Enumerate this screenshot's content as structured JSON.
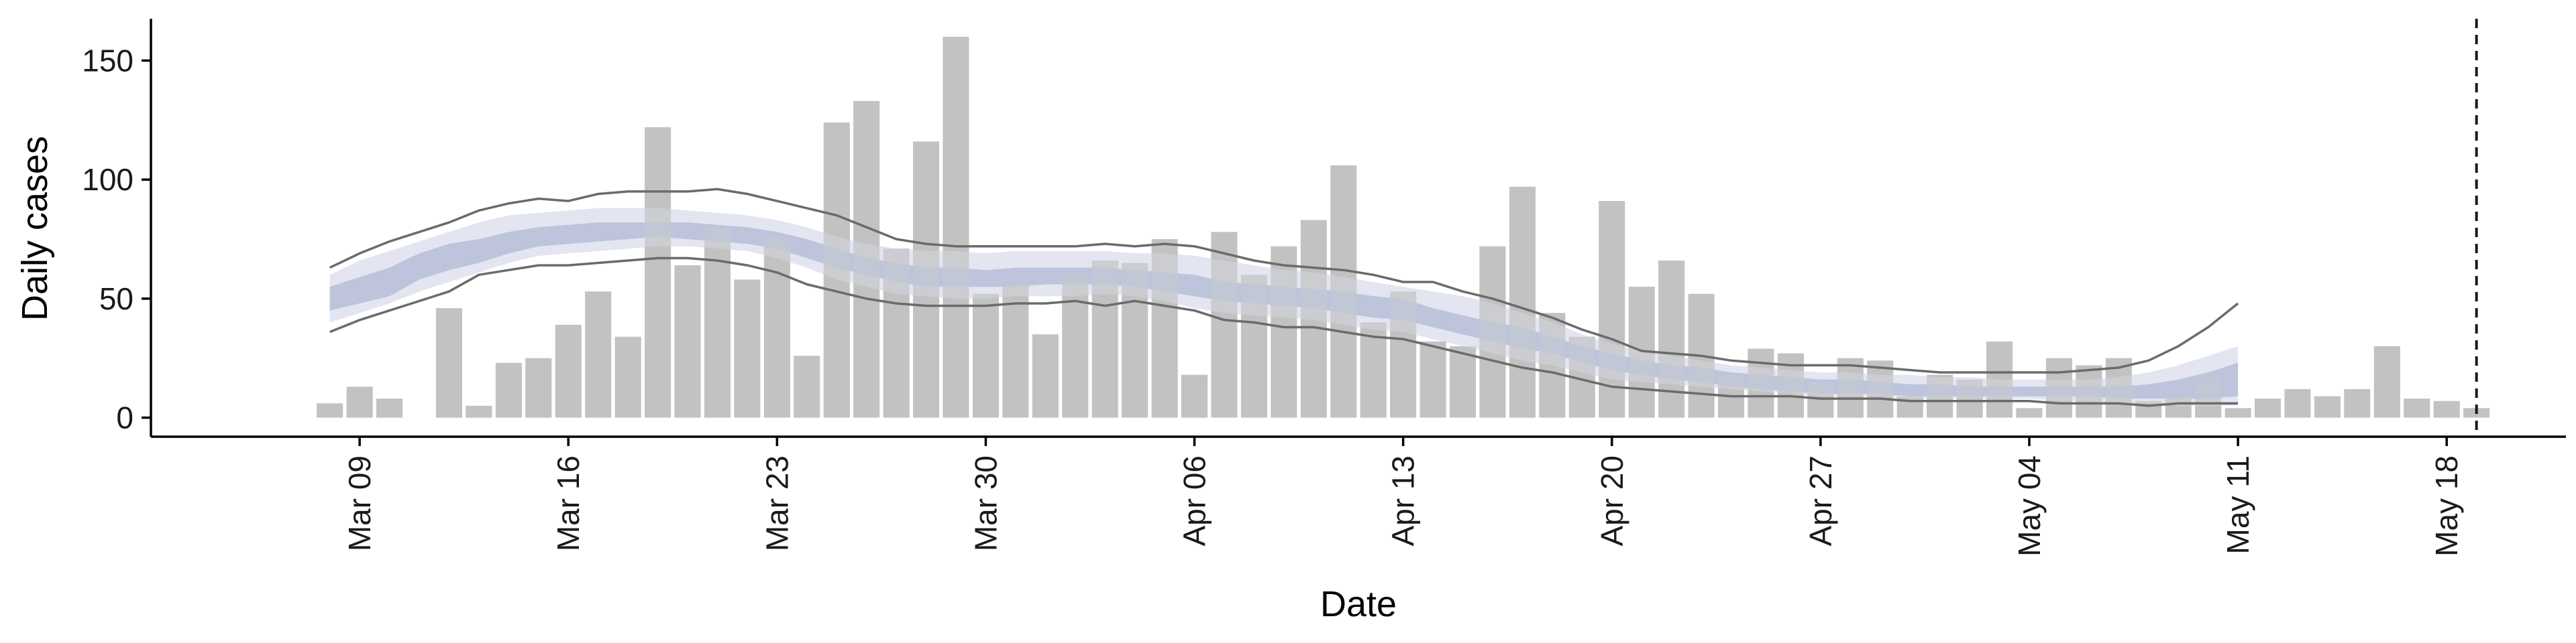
{
  "chart_data": {
    "type": "bar",
    "xlabel": "Date",
    "ylabel": "Daily cases",
    "ylim": [
      -8,
      167
    ],
    "y_ticks": [
      0,
      50,
      100,
      150
    ],
    "x_ticks": [
      "Mar 09",
      "Mar 16",
      "Mar 23",
      "Mar 30",
      "Apr 06",
      "Apr 13",
      "Apr 20",
      "Apr 27",
      "May 04",
      "May 11",
      "May 18"
    ],
    "x_tick_dates": [
      "2020-03-09",
      "2020-03-16",
      "2020-03-23",
      "2020-03-30",
      "2020-04-06",
      "2020-04-13",
      "2020-04-20",
      "2020-04-27",
      "2020-05-04",
      "2020-05-11",
      "2020-05-18"
    ],
    "xlim": [
      "2020-03-02",
      "2020-05-22"
    ],
    "grid": false,
    "vline_date": "2020-05-19",
    "colors": {
      "bars": "#bdbdbd",
      "inner_band": "#a9b3cf",
      "outer_band": "#e3e6f1",
      "bounds": "#6b6b6b",
      "axis": "#000000"
    },
    "series": [
      {
        "type": "bar",
        "x": [
          "2020-03-08",
          "2020-03-09",
          "2020-03-10",
          "2020-03-11",
          "2020-03-12",
          "2020-03-13",
          "2020-03-14",
          "2020-03-15",
          "2020-03-16",
          "2020-03-17",
          "2020-03-18",
          "2020-03-19",
          "2020-03-20",
          "2020-03-21",
          "2020-03-22",
          "2020-03-23",
          "2020-03-24",
          "2020-03-25",
          "2020-03-26",
          "2020-03-27",
          "2020-03-28",
          "2020-03-29",
          "2020-03-30",
          "2020-03-31",
          "2020-04-01",
          "2020-04-02",
          "2020-04-03",
          "2020-04-04",
          "2020-04-05",
          "2020-04-06",
          "2020-04-07",
          "2020-04-08",
          "2020-04-09",
          "2020-04-10",
          "2020-04-11",
          "2020-04-12",
          "2020-04-13",
          "2020-04-14",
          "2020-04-15",
          "2020-04-16",
          "2020-04-17",
          "2020-04-18",
          "2020-04-19",
          "2020-04-20",
          "2020-04-21",
          "2020-04-22",
          "2020-04-23",
          "2020-04-24",
          "2020-04-25",
          "2020-04-26",
          "2020-04-27",
          "2020-04-28",
          "2020-04-29",
          "2020-04-30",
          "2020-05-01",
          "2020-05-02",
          "2020-05-03",
          "2020-05-04",
          "2020-05-05",
          "2020-05-06",
          "2020-05-07",
          "2020-05-08",
          "2020-05-09",
          "2020-05-10",
          "2020-05-11",
          "2020-05-12",
          "2020-05-13",
          "2020-05-14",
          "2020-05-15",
          "2020-05-16",
          "2020-05-17",
          "2020-05-18",
          "2020-05-19"
        ],
        "values": [
          6,
          13,
          8,
          0,
          46,
          5,
          23,
          25,
          39,
          53,
          34,
          122,
          64,
          80,
          58,
          76,
          26,
          124,
          133,
          71,
          116,
          160,
          52,
          56,
          35,
          61,
          66,
          65,
          75,
          18,
          78,
          60,
          72,
          83,
          106,
          40,
          53,
          32,
          30,
          72,
          97,
          44,
          34,
          91,
          55,
          66,
          52,
          18,
          29,
          27,
          15,
          25,
          24,
          9,
          18,
          16,
          32,
          4,
          25,
          22,
          25,
          7,
          9,
          17,
          4,
          8,
          12,
          9,
          12,
          30,
          8,
          7,
          4
        ]
      },
      {
        "type": "band",
        "x": [
          "2020-03-08",
          "2020-03-09",
          "2020-03-10",
          "2020-03-11",
          "2020-03-12",
          "2020-03-13",
          "2020-03-14",
          "2020-03-15",
          "2020-03-16",
          "2020-03-17",
          "2020-03-18",
          "2020-03-19",
          "2020-03-20",
          "2020-03-21",
          "2020-03-22",
          "2020-03-23",
          "2020-03-24",
          "2020-03-25",
          "2020-03-26",
          "2020-03-27",
          "2020-03-28",
          "2020-03-29",
          "2020-03-30",
          "2020-03-31",
          "2020-04-01",
          "2020-04-02",
          "2020-04-03",
          "2020-04-04",
          "2020-04-05",
          "2020-04-06",
          "2020-04-07",
          "2020-04-08",
          "2020-04-09",
          "2020-04-10",
          "2020-04-11",
          "2020-04-12",
          "2020-04-13",
          "2020-04-14",
          "2020-04-15",
          "2020-04-16",
          "2020-04-17",
          "2020-04-18",
          "2020-04-19",
          "2020-04-20",
          "2020-04-21",
          "2020-04-22",
          "2020-04-23",
          "2020-04-24",
          "2020-04-25",
          "2020-04-26",
          "2020-04-27",
          "2020-04-28",
          "2020-04-29",
          "2020-04-30",
          "2020-05-01",
          "2020-05-02",
          "2020-05-03",
          "2020-05-04",
          "2020-05-05",
          "2020-05-06",
          "2020-05-07",
          "2020-05-08",
          "2020-05-09",
          "2020-05-10",
          "2020-05-11"
        ],
        "upper": [
          63,
          69,
          74,
          78,
          82,
          87,
          90,
          92,
          91,
          94,
          95,
          95,
          95,
          96,
          94,
          91,
          88,
          85,
          80,
          75,
          73,
          72,
          72,
          72,
          72,
          72,
          73,
          72,
          73,
          72,
          69,
          66,
          64,
          63,
          62,
          60,
          57,
          57,
          53,
          50,
          46,
          42,
          37,
          33,
          28,
          27,
          26,
          24,
          23,
          22,
          22,
          22,
          21,
          20,
          19,
          19,
          19,
          19,
          19,
          20,
          21,
          24,
          30,
          38,
          48
        ],
        "outer_top": [
          60,
          66,
          70,
          74,
          78,
          82,
          85,
          86,
          87,
          88,
          88,
          88,
          87,
          86,
          85,
          83,
          80,
          76,
          73,
          71,
          70,
          70,
          69,
          70,
          70,
          70,
          70,
          69,
          69,
          68,
          66,
          64,
          62,
          61,
          59,
          57,
          55,
          53,
          51,
          48,
          44,
          40,
          35,
          31,
          28,
          26,
          24,
          22,
          21,
          20,
          19,
          19,
          18,
          18,
          17,
          17,
          16,
          16,
          16,
          16,
          17,
          19,
          22,
          26,
          30
        ],
        "inner_top": [
          55,
          59,
          63,
          69,
          73,
          75,
          78,
          80,
          81,
          82,
          82,
          82,
          82,
          81,
          80,
          78,
          75,
          71,
          67,
          65,
          63,
          63,
          62,
          63,
          63,
          63,
          63,
          62,
          61,
          60,
          57,
          56,
          55,
          54,
          53,
          51,
          50,
          46,
          43,
          40,
          38,
          34,
          30,
          27,
          24,
          22,
          21,
          19,
          18,
          17,
          16,
          16,
          15,
          14,
          14,
          13,
          13,
          13,
          13,
          13,
          13,
          14,
          16,
          19,
          23
        ],
        "inner_bottom": [
          45,
          48,
          51,
          58,
          62,
          65,
          69,
          72,
          73,
          74,
          75,
          76,
          75,
          74,
          73,
          71,
          67,
          63,
          60,
          57,
          55,
          55,
          55,
          55,
          56,
          56,
          56,
          55,
          53,
          51,
          49,
          48,
          47,
          46,
          44,
          42,
          41,
          38,
          35,
          32,
          29,
          27,
          23,
          20,
          18,
          16,
          15,
          13,
          12,
          11,
          10,
          10,
          10,
          9,
          9,
          9,
          9,
          9,
          9,
          9,
          8,
          8,
          8,
          8,
          9
        ],
        "outer_bottom": [
          40,
          44,
          48,
          53,
          57,
          61,
          65,
          68,
          69,
          70,
          71,
          72,
          72,
          71,
          70,
          67,
          63,
          58,
          55,
          52,
          51,
          50,
          50,
          51,
          51,
          51,
          52,
          51,
          49,
          46,
          44,
          43,
          42,
          41,
          39,
          37,
          36,
          33,
          30,
          27,
          24,
          22,
          19,
          16,
          15,
          14,
          13,
          12,
          11,
          10,
          9,
          9,
          9,
          8,
          8,
          8,
          8,
          8,
          7,
          7,
          6,
          6,
          5,
          5,
          5
        ],
        "lower": [
          36,
          41,
          45,
          49,
          53,
          60,
          62,
          64,
          64,
          65,
          66,
          67,
          67,
          66,
          64,
          61,
          56,
          53,
          50,
          48,
          47,
          47,
          47,
          48,
          48,
          49,
          47,
          49,
          47,
          45,
          41,
          40,
          38,
          38,
          36,
          34,
          33,
          30,
          27,
          24,
          21,
          19,
          16,
          13,
          12,
          11,
          10,
          9,
          9,
          9,
          8,
          8,
          8,
          7,
          7,
          7,
          7,
          7,
          6,
          6,
          6,
          5,
          6,
          6,
          6
        ]
      }
    ]
  }
}
